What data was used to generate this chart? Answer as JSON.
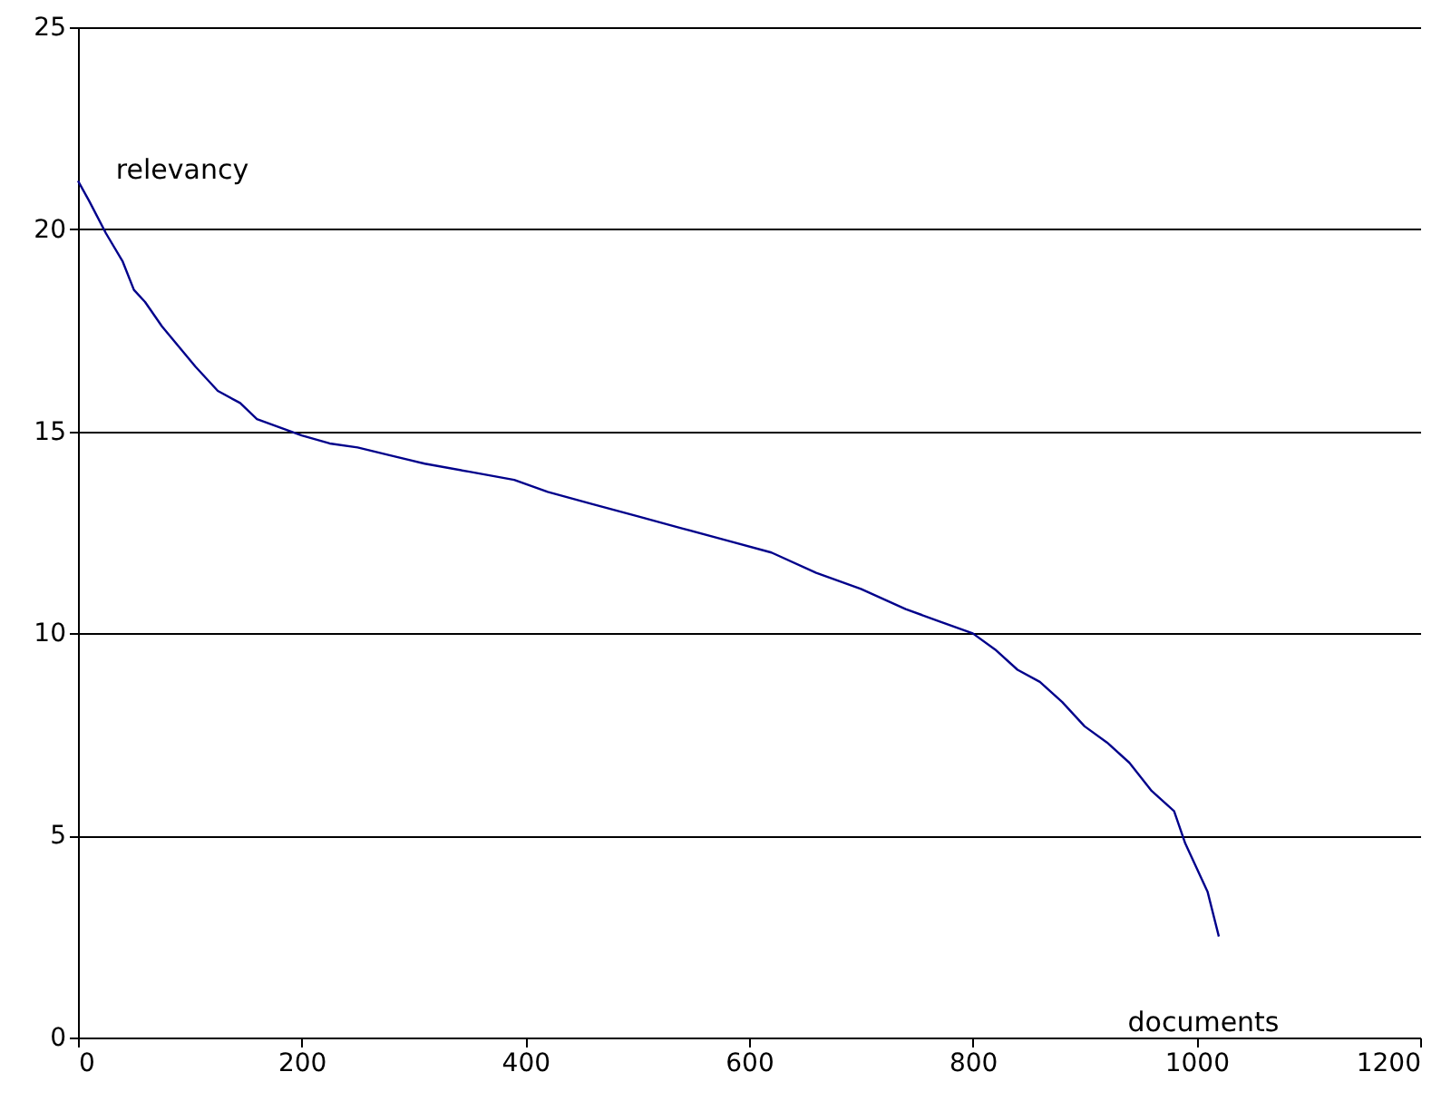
{
  "chart_data": {
    "type": "line",
    "xlabel": "documents",
    "ylabel": "relevancy",
    "xlim": [
      0,
      1200
    ],
    "ylim": [
      0,
      25
    ],
    "xticks": [
      0,
      200,
      400,
      600,
      800,
      1000,
      1200
    ],
    "yticks": [
      0,
      5,
      10,
      15,
      20,
      25
    ],
    "grid": "y",
    "marker": "none",
    "line_style": "solid",
    "series": [
      {
        "color": "#00008b",
        "x": [
          0,
          10,
          25,
          40,
          50,
          60,
          75,
          90,
          105,
          125,
          145,
          160,
          180,
          200,
          225,
          250,
          280,
          310,
          350,
          390,
          420,
          460,
          500,
          540,
          580,
          620,
          660,
          700,
          740,
          770,
          800,
          820,
          840,
          860,
          880,
          900,
          920,
          940,
          960,
          980,
          990,
          1000,
          1010,
          1020
        ],
        "values": [
          21.2,
          20.7,
          19.9,
          19.2,
          18.5,
          18.2,
          17.6,
          17.1,
          16.6,
          16.0,
          15.7,
          15.3,
          15.1,
          14.9,
          14.7,
          14.6,
          14.4,
          14.2,
          14.0,
          13.8,
          13.5,
          13.2,
          12.9,
          12.6,
          12.3,
          12.0,
          11.5,
          11.1,
          10.6,
          10.3,
          10.0,
          9.6,
          9.1,
          8.8,
          8.3,
          7.7,
          7.3,
          6.8,
          6.1,
          5.6,
          4.8,
          4.2,
          3.6,
          2.5
        ]
      }
    ]
  }
}
